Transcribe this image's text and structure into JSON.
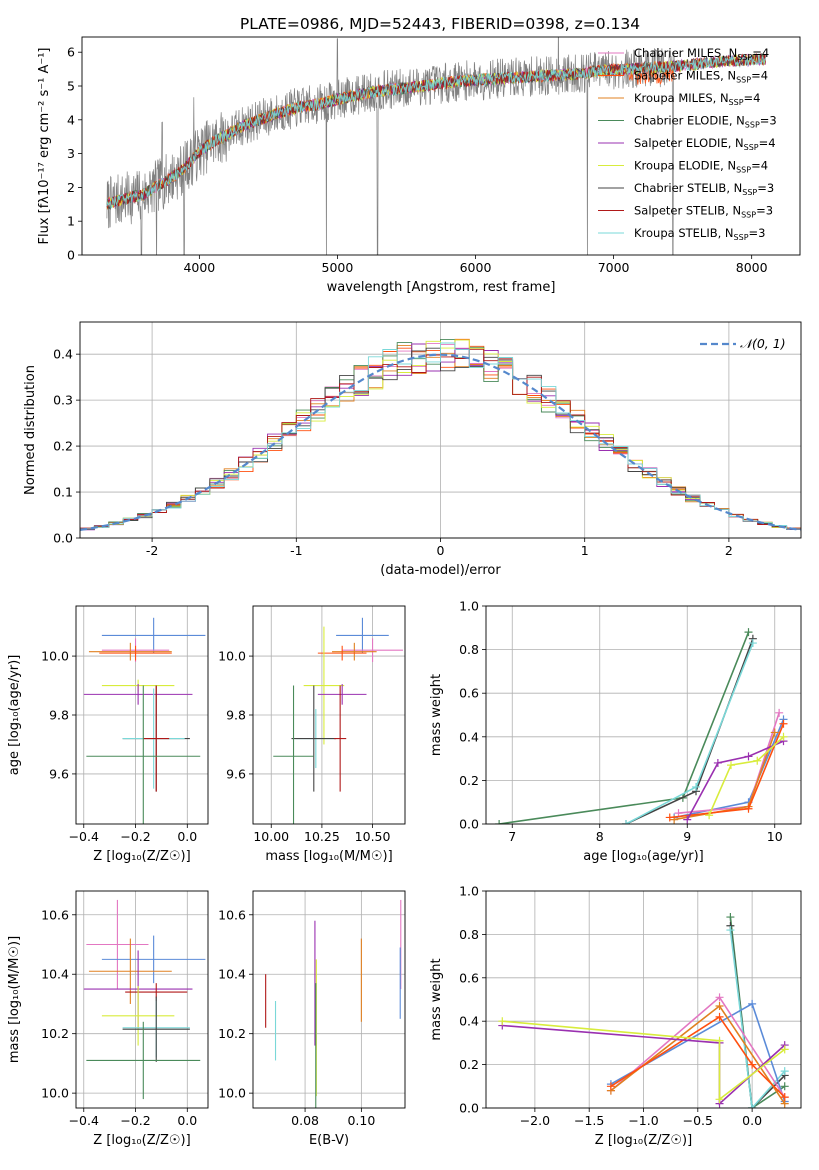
{
  "figure": {
    "title": "PLATE=0986, MJD=52443, FIBERID=0398, z=0.134"
  },
  "chart_data": [
    {
      "id": "spectrum",
      "type": "line",
      "xlabel": "wavelength [Angstrom, rest frame]",
      "ylabel": "Flux [fλ10⁻¹⁷ erg cm⁻² s⁻¹ A⁻¹]",
      "xlim": [
        3150,
        8350
      ],
      "ylim": [
        0,
        6.45
      ],
      "xticks": [
        4000,
        5000,
        6000,
        7000,
        8000
      ],
      "yticks": [
        0,
        1,
        2,
        3,
        4,
        5,
        6
      ],
      "grid": false,
      "legend_position": "right",
      "legend": [
        {
          "label": "Chabrier MILES, N",
          "sub": "SSP",
          "suffix": "=4",
          "color": "#e377c2"
        },
        {
          "label": "Salpeter MILES, N",
          "sub": "SSP",
          "suffix": "=4",
          "color": "#ff5010"
        },
        {
          "label": "Kroupa MILES, N",
          "sub": "SSP",
          "suffix": "=4",
          "color": "#e08020"
        },
        {
          "label": "Chabrier ELODIE, N",
          "sub": "SSP",
          "suffix": "=3",
          "color": "#4a8a5a"
        },
        {
          "label": "Salpeter ELODIE, N",
          "sub": "SSP",
          "suffix": "=4",
          "color": "#9a30b0"
        },
        {
          "label": "Kroupa ELODIE, N",
          "sub": "SSP",
          "suffix": "=4",
          "color": "#d8ec3c"
        },
        {
          "label": "Chabrier STELIB, N",
          "sub": "SSP",
          "suffix": "=3",
          "color": "#444444"
        },
        {
          "label": "Salpeter STELIB, N",
          "sub": "SSP",
          "suffix": "=3",
          "color": "#b01818"
        },
        {
          "label": "Kroupa STELIB, N",
          "sub": "SSP",
          "suffix": "=3",
          "color": "#7ad8d8"
        }
      ],
      "data_color": "#808080",
      "continuum": {
        "x": [
          3330,
          3400,
          3500,
          3600,
          3700,
          3800,
          3900,
          4000,
          4100,
          4200,
          4300,
          4500,
          4700,
          4900,
          5100,
          5300,
          5500,
          5700,
          5900,
          6100,
          6300,
          6500,
          6700,
          6900,
          7100,
          7300,
          7500,
          7700,
          7900,
          8100
        ],
        "y": [
          1.5,
          1.6,
          1.7,
          1.8,
          2.05,
          2.3,
          2.6,
          3.05,
          3.35,
          3.55,
          3.8,
          4.1,
          4.35,
          4.5,
          4.7,
          4.85,
          4.95,
          5.05,
          5.15,
          5.2,
          5.25,
          5.3,
          5.35,
          5.45,
          5.5,
          5.55,
          5.6,
          5.7,
          5.75,
          5.8
        ]
      }
    },
    {
      "id": "residual_hist",
      "type": "bar",
      "xlabel": "(data-model)/error",
      "ylabel": "Normed distribution",
      "xlim": [
        -2.5,
        2.5
      ],
      "ylim": [
        0,
        0.47
      ],
      "xticks": [
        -2,
        -1,
        0,
        1,
        2
      ],
      "yticks": [
        0.0,
        0.1,
        0.2,
        0.3,
        0.4
      ],
      "grid": true,
      "legend_position": "top-right",
      "legend_label": "𝒩(0, 1)",
      "bin_width": 0.1
    },
    {
      "id": "age_vs_Z",
      "type": "scatter",
      "xlabel": "Z [log₁₀(Z/Z☉)]",
      "ylabel": "age  [log₁₀(age/yr)]",
      "xlim": [
        -0.43,
        0.08
      ],
      "ylim": [
        9.43,
        10.17
      ],
      "xticks": [
        -0.4,
        -0.2,
        0.0
      ],
      "yticks": [
        9.6,
        9.8,
        10.0
      ],
      "grid": true,
      "points": [
        {
          "x": -0.13,
          "y": 10.07,
          "xerr": 0.2,
          "yerr": 0.06,
          "color": "#5b8bd8"
        },
        {
          "x": -0.2,
          "y": 10.02,
          "xerr": 0.13,
          "yerr": 0.04,
          "color": "#e377c2"
        },
        {
          "x": -0.22,
          "y": 10.015,
          "xerr": 0.16,
          "yerr": 0.03,
          "color": "#e08020"
        },
        {
          "x": -0.2,
          "y": 10.01,
          "xerr": 0.14,
          "yerr": 0.025,
          "color": "#ff5010"
        },
        {
          "x": -0.19,
          "y": 9.9,
          "xerr": 0.14,
          "yerr": 0.02,
          "color": "#d8ec3c"
        },
        {
          "x": -0.19,
          "y": 9.87,
          "xerr": 0.21,
          "yerr": 0.035,
          "color": "#9a30b0"
        },
        {
          "x": -0.12,
          "y": 9.72,
          "xerr": 0.13,
          "yerr": 0.18,
          "color": "#444444"
        },
        {
          "x": -0.13,
          "y": 9.72,
          "xerr": 0.12,
          "yerr": 0.17,
          "color": "#7ad8d8"
        },
        {
          "x": -0.12,
          "y": 9.72,
          "xerr": 0.05,
          "yerr": 0.18,
          "color": "#b01818"
        },
        {
          "x": -0.17,
          "y": 9.66,
          "xerr": 0.22,
          "yerr": 0.24,
          "color": "#4a8a5a"
        }
      ]
    },
    {
      "id": "age_vs_mass",
      "type": "scatter",
      "xlabel": "mass [log₁₀(M/M☉)]",
      "ylabel": "",
      "xlim": [
        9.91,
        10.66
      ],
      "ylim": [
        9.43,
        10.17
      ],
      "xticks": [
        10.0,
        10.25,
        10.5
      ],
      "yticks": [
        9.6,
        9.8,
        10.0
      ],
      "grid": true,
      "points": [
        {
          "x": 10.45,
          "y": 10.07,
          "xerr": 0.13,
          "yerr": 0.06,
          "color": "#5b8bd8"
        },
        {
          "x": 10.5,
          "y": 10.02,
          "xerr": 0.15,
          "yerr": 0.04,
          "color": "#e377c2"
        },
        {
          "x": 10.41,
          "y": 10.015,
          "xerr": 0.11,
          "yerr": 0.03,
          "color": "#e08020"
        },
        {
          "x": 10.35,
          "y": 10.01,
          "xerr": 0.12,
          "yerr": 0.025,
          "color": "#ff5010"
        },
        {
          "x": 10.26,
          "y": 9.9,
          "xerr": 0.1,
          "yerr": 0.2,
          "color": "#d8ec3c"
        },
        {
          "x": 10.35,
          "y": 9.87,
          "xerr": 0.12,
          "yerr": 0.035,
          "color": "#9a30b0"
        },
        {
          "x": 10.22,
          "y": 9.72,
          "xerr": 0.1,
          "yerr": 0.1,
          "color": "#7ad8d8"
        },
        {
          "x": 10.21,
          "y": 9.72,
          "xerr": 0.11,
          "yerr": 0.18,
          "color": "#444444"
        },
        {
          "x": 10.34,
          "y": 9.72,
          "xerr": 0.03,
          "yerr": 0.18,
          "color": "#b01818"
        },
        {
          "x": 10.11,
          "y": 9.66,
          "xerr": 0.1,
          "yerr": 0.24,
          "color": "#4a8a5a"
        }
      ]
    },
    {
      "id": "weight_vs_age",
      "type": "line",
      "xlabel": "age  [log₁₀(age/yr)]",
      "ylabel": "mass weight",
      "xlim": [
        6.7,
        10.3
      ],
      "ylim": [
        0,
        1.0
      ],
      "xticks": [
        7,
        8,
        9,
        10
      ],
      "yticks": [
        0.0,
        0.2,
        0.4,
        0.6,
        0.8,
        1.0
      ],
      "grid": true,
      "series": [
        {
          "color": "#4a8a5a",
          "x": [
            6.85,
            8.95,
            9.7
          ],
          "y": [
            0.0,
            0.12,
            0.88
          ]
        },
        {
          "color": "#444444",
          "x": [
            8.3,
            9.1,
            9.75
          ],
          "y": [
            0.0,
            0.15,
            0.85
          ]
        },
        {
          "color": "#7ad8d8",
          "x": [
            8.3,
            9.1,
            9.75
          ],
          "y": [
            0.0,
            0.17,
            0.83
          ]
        },
        {
          "color": "#5b8bd8",
          "x": [
            8.85,
            9.7,
            10.1
          ],
          "y": [
            0.03,
            0.1,
            0.48
          ]
        },
        {
          "color": "#e377c2",
          "x": [
            8.9,
            9.7,
            10.05
          ],
          "y": [
            0.05,
            0.08,
            0.51
          ]
        },
        {
          "color": "#e08020",
          "x": [
            8.85,
            9.7,
            10.0
          ],
          "y": [
            0.02,
            0.08,
            0.42
          ]
        },
        {
          "color": "#ff5010",
          "x": [
            8.8,
            9.7,
            10.1
          ],
          "y": [
            0.03,
            0.07,
            0.46
          ]
        },
        {
          "color": "#9a30b0",
          "x": [
            9.0,
            9.35,
            9.7,
            10.1
          ],
          "y": [
            0.02,
            0.28,
            0.31,
            0.38
          ]
        },
        {
          "color": "#d8ec3c",
          "x": [
            9.25,
            9.5,
            9.8,
            10.1
          ],
          "y": [
            0.04,
            0.27,
            0.29,
            0.4
          ]
        }
      ]
    },
    {
      "id": "mass_vs_Z",
      "type": "scatter",
      "xlabel": "Z [log₁₀(Z/Z☉)]",
      "ylabel": "mass [log₁₀(M/M☉)]",
      "xlim": [
        -0.43,
        0.08
      ],
      "ylim": [
        9.95,
        10.68
      ],
      "xticks": [
        -0.4,
        -0.2,
        0.0
      ],
      "yticks": [
        10.0,
        10.2,
        10.4,
        10.6
      ],
      "grid": true,
      "points": [
        {
          "x": -0.27,
          "y": 10.5,
          "xerr": 0.12,
          "yerr": 0.15,
          "color": "#e377c2"
        },
        {
          "x": -0.13,
          "y": 10.45,
          "xerr": 0.2,
          "yerr": 0.08,
          "color": "#5b8bd8"
        },
        {
          "x": -0.22,
          "y": 10.41,
          "xerr": 0.16,
          "yerr": 0.11,
          "color": "#e08020"
        },
        {
          "x": -0.19,
          "y": 10.35,
          "xerr": 0.21,
          "yerr": 0.13,
          "color": "#9a30b0"
        },
        {
          "x": -0.12,
          "y": 10.34,
          "xerr": 0.12,
          "yerr": 0.03,
          "color": "#b01818"
        },
        {
          "x": -0.19,
          "y": 10.26,
          "xerr": 0.14,
          "yerr": 0.1,
          "color": "#d8ec3c"
        },
        {
          "x": -0.12,
          "y": 10.22,
          "xerr": 0.13,
          "yerr": 0.1,
          "color": "#7ad8d8"
        },
        {
          "x": -0.12,
          "y": 10.215,
          "xerr": 0.13,
          "yerr": 0.11,
          "color": "#444444"
        },
        {
          "x": -0.17,
          "y": 10.11,
          "xerr": 0.22,
          "yerr": 0.13,
          "color": "#4a8a5a"
        }
      ]
    },
    {
      "id": "mass_vs_ebv",
      "type": "scatter",
      "xlabel": "E(B-V)",
      "ylabel": "",
      "xlim": [
        0.0615,
        0.1155
      ],
      "ylim": [
        9.95,
        10.68
      ],
      "xticks": [
        0.08,
        0.1
      ],
      "yticks": [
        10.0,
        10.2,
        10.4,
        10.6
      ],
      "grid": true,
      "points": [
        {
          "x": 0.066,
          "y": 10.31,
          "yerr": 0.09,
          "color": "#b01818"
        },
        {
          "x": 0.0695,
          "y": 10.21,
          "yerr": 0.1,
          "color": "#7ad8d8"
        },
        {
          "x": 0.0835,
          "y": 10.37,
          "yerr": 0.21,
          "color": "#9a30b0"
        },
        {
          "x": 0.084,
          "y": 10.22,
          "yerr": 0.23,
          "color": "#d8ec3c"
        },
        {
          "x": 0.0838,
          "y": 10.14,
          "yerr": 0.23,
          "color": "#4a8a5a"
        },
        {
          "x": 0.1,
          "y": 10.38,
          "yerr": 0.14,
          "color": "#e08020"
        },
        {
          "x": 0.114,
          "y": 10.5,
          "yerr": 0.15,
          "color": "#e377c2"
        },
        {
          "x": 0.1138,
          "y": 10.37,
          "yerr": 0.12,
          "color": "#5b8bd8"
        }
      ]
    },
    {
      "id": "weight_vs_Z",
      "type": "line",
      "xlabel": "Z [log₁₀(Z/Z☉)]",
      "ylabel": "mass weight",
      "xlim": [
        -2.45,
        0.45
      ],
      "ylim": [
        0,
        1.0
      ],
      "xticks": [
        -2.0,
        -1.5,
        -1.0,
        -0.5,
        0.0
      ],
      "yticks": [
        0.0,
        0.2,
        0.4,
        0.6,
        0.8,
        1.0
      ],
      "grid": true,
      "series": [
        {
          "color": "#4a8a5a",
          "x": [
            -0.2,
            0.0,
            0.3
          ],
          "y": [
            0.88,
            0.0,
            0.1
          ]
        },
        {
          "color": "#444444",
          "x": [
            -0.2,
            0.0,
            0.3
          ],
          "y": [
            0.84,
            0.0,
            0.15
          ]
        },
        {
          "color": "#7ad8d8",
          "x": [
            -0.2,
            0.0,
            0.3
          ],
          "y": [
            0.82,
            0.0,
            0.17
          ]
        },
        {
          "color": "#5b8bd8",
          "x": [
            -1.3,
            0.0,
            0.3
          ],
          "y": [
            0.11,
            0.48,
            0.03
          ]
        },
        {
          "color": "#e377c2",
          "x": [
            -1.3,
            -0.3,
            0.3
          ],
          "y": [
            0.08,
            0.51,
            0.05
          ]
        },
        {
          "color": "#e08020",
          "x": [
            -1.3,
            -0.3,
            0.3
          ],
          "y": [
            0.08,
            0.47,
            0.02
          ]
        },
        {
          "color": "#ff5010",
          "x": [
            -1.3,
            -0.3,
            0.0,
            0.3
          ],
          "y": [
            0.1,
            0.42,
            0.2,
            0.05
          ]
        },
        {
          "color": "#9a30b0",
          "x": [
            -2.3,
            -0.3,
            -0.3,
            0.3
          ],
          "y": [
            0.38,
            0.3,
            0.02,
            0.29
          ]
        },
        {
          "color": "#d8ec3c",
          "x": [
            -2.3,
            -0.3,
            -0.3,
            0.3
          ],
          "y": [
            0.4,
            0.31,
            0.04,
            0.27
          ]
        }
      ]
    }
  ]
}
